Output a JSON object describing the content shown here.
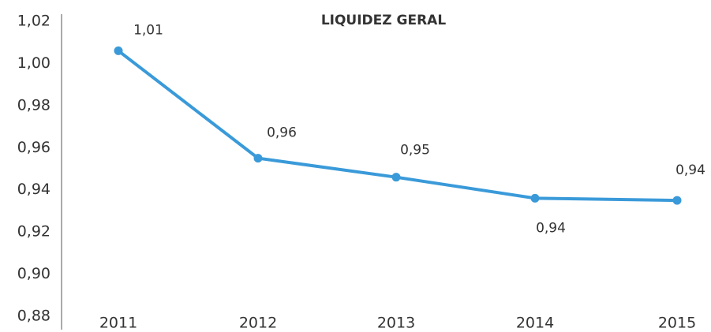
{
  "chart_data": {
    "type": "line",
    "title": "LIQUIDEZ GERAL",
    "categories": [
      "2011",
      "2012",
      "2013",
      "2014",
      "2015"
    ],
    "series": [
      {
        "name": "Liquidez Geral",
        "color": "#3a9ad9",
        "values": [
          1.006,
          0.955,
          0.946,
          0.936,
          0.935
        ],
        "value_labels": [
          "1,01",
          "0,96",
          "0,95",
          "0,94",
          "0,94"
        ]
      }
    ],
    "ylim": [
      0.88,
      1.02
    ],
    "yticks": [
      {
        "value": 0.88,
        "label": "0,88"
      },
      {
        "value": 0.9,
        "label": "0,90"
      },
      {
        "value": 0.92,
        "label": "0,92"
      },
      {
        "value": 0.94,
        "label": "0,94"
      },
      {
        "value": 0.96,
        "label": "0,96"
      },
      {
        "value": 0.98,
        "label": "0,98"
      },
      {
        "value": 1.0,
        "label": "1,00"
      },
      {
        "value": 1.02,
        "label": "1,02"
      }
    ]
  }
}
